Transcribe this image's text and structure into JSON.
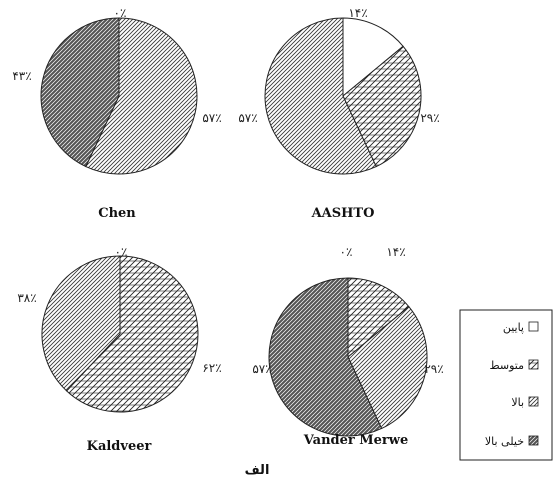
{
  "chart_data": [
    {
      "type": "pie",
      "title": "Chen",
      "categories": [
        "پایین",
        "متوسط",
        "بالا",
        "خیلی بالا"
      ],
      "values": [
        0,
        0,
        57,
        43
      ],
      "labels": [
        "۰٪",
        "",
        "۵۷٪",
        "۴۳٪"
      ]
    },
    {
      "type": "pie",
      "title": "AASHTO",
      "categories": [
        "پایین",
        "متوسط",
        "بالا",
        "خیلی بالا"
      ],
      "values": [
        14,
        29,
        57,
        0
      ],
      "labels": [
        "۱۴٪",
        "۲۹٪",
        "۵۷٪",
        ""
      ]
    },
    {
      "type": "pie",
      "title": "Kaldveer",
      "categories": [
        "پایین",
        "متوسط",
        "بالا",
        "خیلی بالا"
      ],
      "values": [
        0,
        62,
        38,
        0
      ],
      "labels": [
        "۰٪",
        "۶۲٪",
        "۳۸٪",
        ""
      ]
    },
    {
      "type": "pie",
      "title": "Vander Merwe",
      "categories": [
        "پایین",
        "متوسط",
        "بالا",
        "خیلی بالا"
      ],
      "values": [
        0,
        14,
        29,
        57
      ],
      "labels": [
        "۰٪",
        "۱۴٪",
        "۲۹٪",
        "۵۷٪"
      ]
    }
  ],
  "legend": {
    "placement": "right",
    "items": [
      {
        "label": "پایین",
        "pattern": "blank"
      },
      {
        "label": "متوسط",
        "pattern": "dense-hatch"
      },
      {
        "label": "بالا",
        "pattern": "fine-diagonal"
      },
      {
        "label": "خیلی بالا",
        "pattern": "dark-diagonal"
      }
    ]
  },
  "caption": "الف"
}
